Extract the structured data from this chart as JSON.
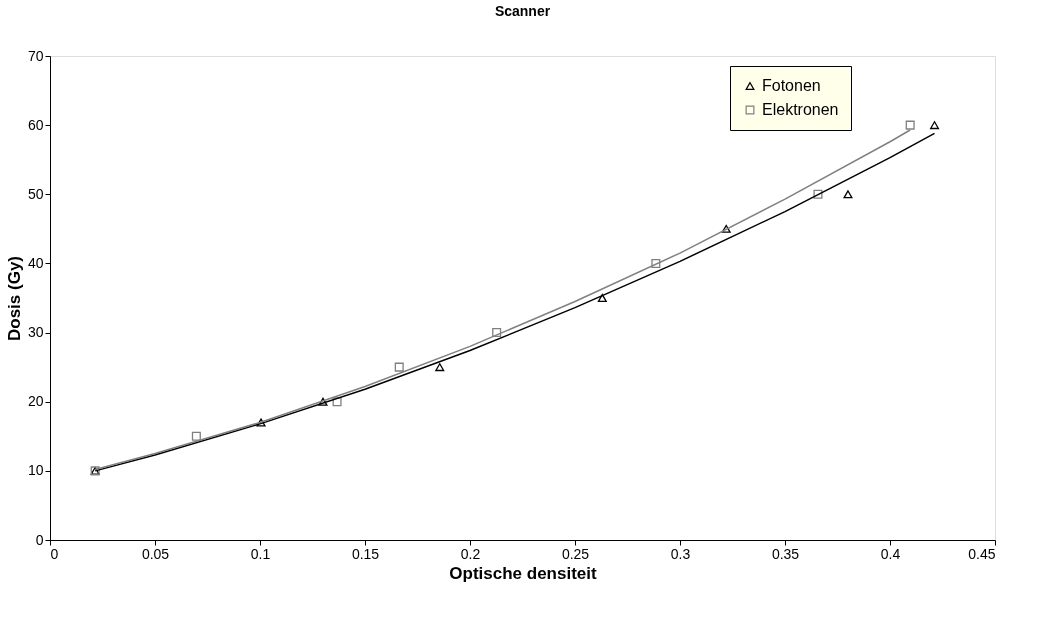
{
  "chart_data": {
    "type": "scatter",
    "title": "Scanner",
    "xlabel": "Optische densiteit",
    "ylabel": "Dosis (Gy)",
    "xlim": [
      0,
      0.45
    ],
    "xticks": [
      0,
      0.05,
      0.1,
      0.15,
      0.2,
      0.25,
      0.3,
      0.35,
      0.4,
      0.45
    ],
    "ylim": [
      0,
      70
    ],
    "yticks": [
      0,
      10,
      20,
      30,
      40,
      50,
      60,
      70
    ],
    "grid": false,
    "legend": "top right",
    "series": [
      {
        "name": "Fotonen",
        "color": "#000000",
        "marker": "triangle",
        "x": [
          0.0215,
          0.1005,
          0.13,
          0.1856,
          0.263,
          0.322,
          0.38,
          0.4212
        ],
        "values": [
          10,
          17,
          20,
          25,
          35,
          45,
          50,
          60
        ]
      },
      {
        "name": "Elektronen",
        "color": "#808080",
        "marker": "square",
        "x": [
          0.0215,
          0.0697,
          0.1367,
          0.1663,
          0.2127,
          0.2885,
          0.3657,
          0.4096
        ],
        "values": [
          10,
          15,
          20,
          25,
          30,
          40,
          50,
          60
        ]
      },
      {
        "type": "line",
        "color": "#000000",
        "x": [
          0.0215,
          0.05,
          0.1,
          0.15,
          0.2,
          0.25,
          0.3,
          0.35,
          0.4,
          0.4212
        ],
        "values": [
          10,
          12.3,
          16.8,
          21.8,
          27.4,
          33.6,
          40.3,
          47.5,
          55.3,
          58.8
        ]
      },
      {
        "type": "line",
        "color": "#808080",
        "x": [
          0.0215,
          0.05,
          0.1,
          0.15,
          0.2,
          0.25,
          0.3,
          0.35,
          0.4,
          0.4096
        ],
        "values": [
          10.2,
          12.5,
          17.0,
          22.2,
          28.0,
          34.5,
          41.5,
          49.3,
          57.6,
          59.3
        ]
      }
    ]
  }
}
